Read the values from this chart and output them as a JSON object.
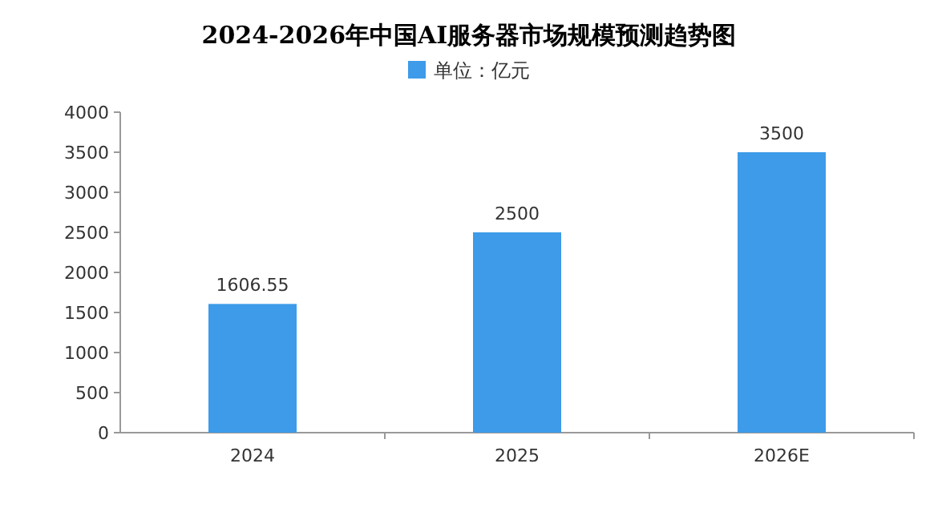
{
  "chart_data": {
    "type": "bar",
    "title": "2024-2026年中国AI服务器市场规模预测趋势图",
    "categories": [
      "2024",
      "2025",
      "2026E"
    ],
    "series": [
      {
        "name": "单位：亿元",
        "color": "#3d9be9",
        "values": [
          1606.55,
          2500,
          3500
        ]
      }
    ],
    "ylim": [
      0,
      4000
    ],
    "yticks": [
      0,
      500,
      1000,
      1500,
      2000,
      2500,
      3000,
      3500,
      4000
    ],
    "data_labels": true,
    "legend": "top"
  }
}
